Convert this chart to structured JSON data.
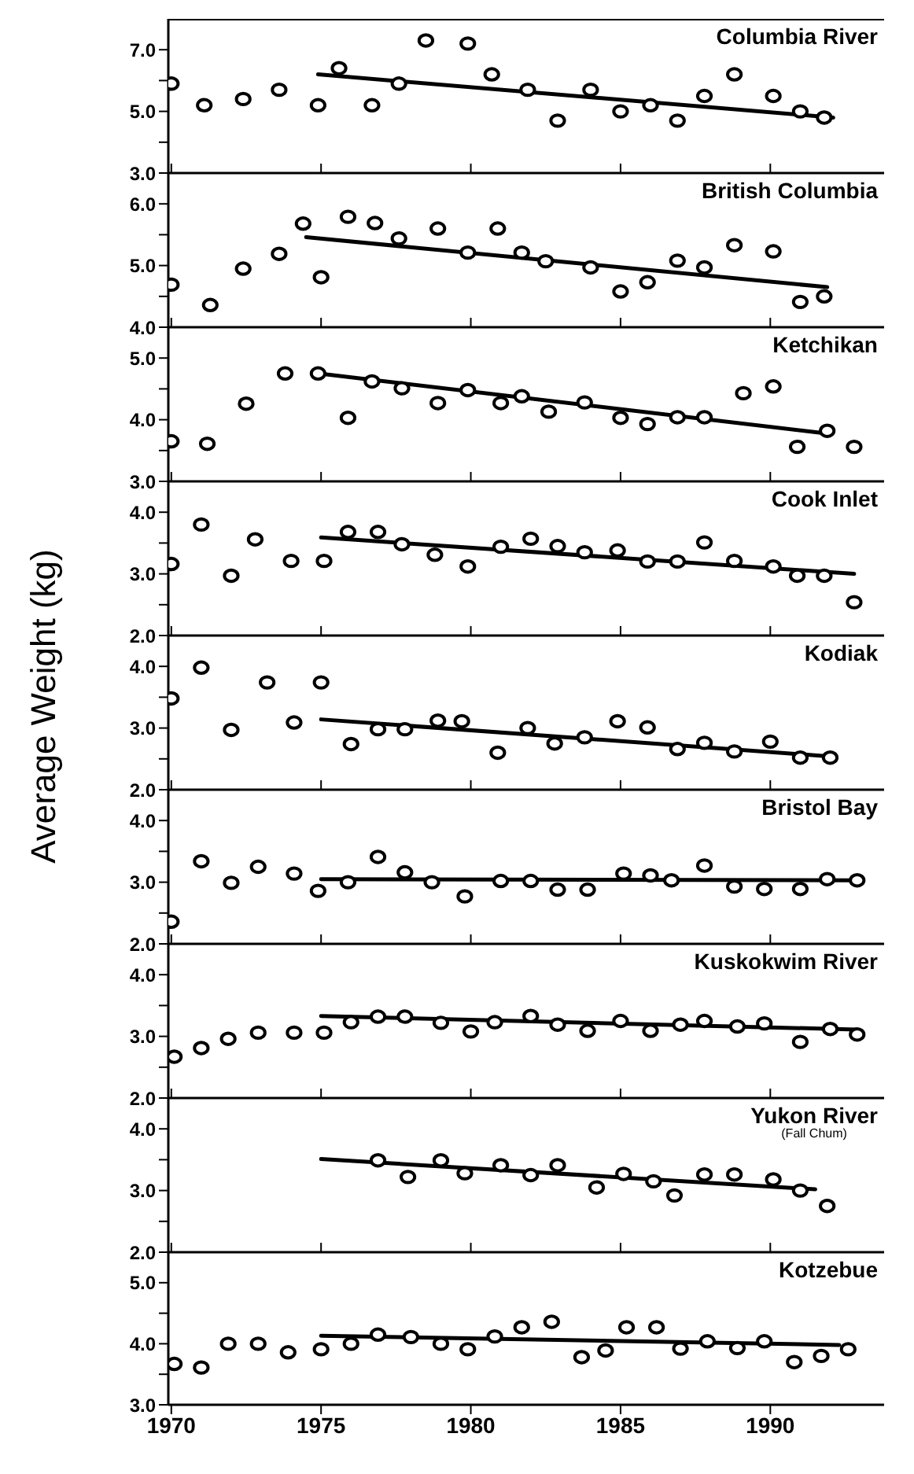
{
  "chart_data": [
    {
      "type": "scatter",
      "title": "Columbia River",
      "marker": "circle",
      "tick_labels": "y",
      "xlim": [
        1969.9,
        1993.8
      ],
      "xticks": [
        1970,
        1975,
        1980,
        1985,
        1990
      ],
      "ylim": [
        3,
        8
      ],
      "yticks": [
        {
          "value": 3,
          "label": "3.0"
        },
        {
          "value": 4,
          "label": null
        },
        {
          "value": 5,
          "label": "5.0"
        },
        {
          "value": 6,
          "label": null
        },
        {
          "value": 7,
          "label": "7.0"
        }
      ],
      "series": [
        {
          "type": "scatter",
          "color": "#000000",
          "x": [
            1970.0,
            1971.1,
            1972.4,
            1973.6,
            1974.9,
            1975.6,
            1976.7,
            1977.6,
            1978.5,
            1979.9,
            1980.7,
            1981.9,
            1982.9,
            1984.0,
            1985.0,
            1986.0,
            1986.9,
            1987.8,
            1988.8,
            1990.1,
            1991.0,
            1991.8
          ],
          "values": [
            5.9,
            5.2,
            5.4,
            5.7,
            5.2,
            6.4,
            5.2,
            5.9,
            7.3,
            7.2,
            6.2,
            5.7,
            4.7,
            5.7,
            5.0,
            5.2,
            4.7,
            5.5,
            6.2,
            5.5,
            5.0,
            4.8
          ]
        },
        {
          "type": "line",
          "color": "#000000",
          "marker": "none",
          "line_style": "solid",
          "x": [
            1974.9,
            1992.1
          ],
          "values": [
            6.2,
            4.8
          ]
        }
      ]
    },
    {
      "type": "scatter",
      "title": "British Columbia",
      "marker": "circle",
      "tick_labels": "y",
      "xlim": [
        1969.9,
        1993.8
      ],
      "xticks": [
        1970,
        1975,
        1980,
        1985,
        1990
      ],
      "ylim": [
        4,
        6.5
      ],
      "yticks": [
        {
          "value": 4,
          "label": "4.0"
        },
        {
          "value": 4.5,
          "label": null
        },
        {
          "value": 5,
          "label": "5.0"
        },
        {
          "value": 5.5,
          "label": null
        },
        {
          "value": 6,
          "label": "6.0"
        }
      ],
      "series": [
        {
          "type": "scatter",
          "color": "#000000",
          "x": [
            1970.0,
            1971.3,
            1972.4,
            1973.6,
            1974.4,
            1975.0,
            1975.9,
            1976.8,
            1977.6,
            1978.9,
            1979.9,
            1980.9,
            1981.7,
            1982.5,
            1984.0,
            1985.0,
            1985.9,
            1986.9,
            1987.8,
            1988.8,
            1990.1,
            1991.0,
            1991.8
          ],
          "values": [
            4.69,
            4.36,
            4.95,
            5.19,
            5.68,
            4.81,
            5.79,
            5.69,
            5.44,
            5.6,
            5.21,
            5.6,
            5.21,
            5.07,
            4.97,
            4.58,
            4.73,
            5.08,
            4.97,
            5.33,
            5.23,
            4.41,
            4.5
          ]
        },
        {
          "type": "line",
          "color": "#000000",
          "marker": "none",
          "line_style": "solid",
          "x": [
            1974.5,
            1991.9
          ],
          "values": [
            5.46,
            4.65
          ]
        }
      ]
    },
    {
      "type": "scatter",
      "title": "Ketchikan",
      "marker": "circle",
      "tick_labels": "y",
      "xlim": [
        1969.9,
        1993.8
      ],
      "xticks": [
        1970,
        1975,
        1980,
        1985,
        1990
      ],
      "ylim": [
        3,
        5.5
      ],
      "yticks": [
        {
          "value": 3,
          "label": "3.0"
        },
        {
          "value": 3.5,
          "label": null
        },
        {
          "value": 4,
          "label": "4.0"
        },
        {
          "value": 4.5,
          "label": null
        },
        {
          "value": 5,
          "label": "5.0"
        }
      ],
      "series": [
        {
          "type": "scatter",
          "color": "#000000",
          "x": [
            1970.0,
            1971.2,
            1972.5,
            1973.8,
            1974.9,
            1975.9,
            1976.7,
            1977.7,
            1978.9,
            1979.9,
            1981.0,
            1981.7,
            1982.6,
            1983.8,
            1985.0,
            1985.9,
            1986.9,
            1987.8,
            1989.1,
            1990.1,
            1990.9,
            1991.9,
            1992.8
          ],
          "values": [
            3.65,
            3.61,
            4.26,
            4.75,
            4.75,
            4.03,
            4.62,
            4.51,
            4.27,
            4.48,
            4.27,
            4.38,
            4.13,
            4.28,
            4.03,
            3.93,
            4.04,
            4.04,
            4.43,
            4.54,
            3.56,
            3.82,
            3.56
          ]
        },
        {
          "type": "line",
          "color": "#000000",
          "marker": "none",
          "line_style": "solid",
          "x": [
            1974.9,
            1991.8
          ],
          "values": [
            4.75,
            3.78
          ]
        }
      ]
    },
    {
      "type": "scatter",
      "title": "Cook Inlet",
      "marker": "circle",
      "tick_labels": "y",
      "xlim": [
        1969.9,
        1993.8
      ],
      "xticks": [
        1970,
        1975,
        1980,
        1985,
        1990
      ],
      "ylim": [
        2,
        4.5
      ],
      "yticks": [
        {
          "value": 2,
          "label": "2.0"
        },
        {
          "value": 2.5,
          "label": null
        },
        {
          "value": 3,
          "label": "3.0"
        },
        {
          "value": 3.5,
          "label": null
        },
        {
          "value": 4,
          "label": "4.0"
        }
      ],
      "series": [
        {
          "type": "scatter",
          "color": "#000000",
          "x": [
            1970.0,
            1971.0,
            1972.0,
            1972.8,
            1974.0,
            1975.1,
            1975.9,
            1976.9,
            1977.7,
            1978.8,
            1979.9,
            1981.0,
            1982.0,
            1982.9,
            1983.8,
            1984.9,
            1985.9,
            1986.9,
            1987.8,
            1988.8,
            1990.1,
            1990.9,
            1991.8,
            1992.8
          ],
          "values": [
            3.16,
            3.8,
            2.97,
            3.56,
            3.21,
            3.21,
            3.68,
            3.68,
            3.48,
            3.31,
            3.12,
            3.44,
            3.57,
            3.45,
            3.35,
            3.38,
            3.2,
            3.2,
            3.51,
            3.21,
            3.12,
            2.97,
            2.97,
            2.54
          ]
        },
        {
          "type": "line",
          "color": "#000000",
          "marker": "none",
          "line_style": "solid",
          "x": [
            1975,
            1992.8
          ],
          "values": [
            3.59,
            3.0
          ]
        }
      ]
    },
    {
      "type": "scatter",
      "title": "Kodiak",
      "ylabel": "Average Weight (kg)",
      "marker": "circle",
      "tick_labels": "y",
      "xlim": [
        1969.9,
        1993.8
      ],
      "xticks": [
        1970,
        1975,
        1980,
        1985,
        1990
      ],
      "ylim": [
        2,
        4.5
      ],
      "yticks": [
        {
          "value": 2,
          "label": "2.0"
        },
        {
          "value": 2.5,
          "label": null
        },
        {
          "value": 3,
          "label": "3.0"
        },
        {
          "value": 3.5,
          "label": null
        },
        {
          "value": 4,
          "label": "4.0"
        }
      ],
      "series": [
        {
          "type": "scatter",
          "color": "#000000",
          "x": [
            1970.0,
            1971.0,
            1972.0,
            1973.2,
            1974.1,
            1975.0,
            1976.0,
            1976.9,
            1977.8,
            1978.9,
            1979.7,
            1980.9,
            1981.9,
            1982.8,
            1983.8,
            1984.9,
            1985.9,
            1986.9,
            1987.8,
            1988.8,
            1990.0,
            1991.0,
            1992.0
          ],
          "values": [
            3.48,
            3.98,
            2.97,
            3.74,
            3.09,
            3.74,
            2.74,
            2.98,
            2.98,
            3.12,
            3.11,
            2.6,
            3.0,
            2.75,
            2.85,
            3.11,
            3.01,
            2.66,
            2.76,
            2.62,
            2.78,
            2.52,
            2.52
          ]
        },
        {
          "type": "line",
          "color": "#000000",
          "marker": "none",
          "line_style": "solid",
          "x": [
            1975,
            1992
          ],
          "values": [
            3.14,
            2.54
          ]
        }
      ]
    },
    {
      "type": "scatter",
      "title": "Bristol Bay",
      "marker": "circle",
      "tick_labels": "y",
      "xlim": [
        1969.9,
        1993.8
      ],
      "xticks": [
        1970,
        1975,
        1980,
        1985,
        1990
      ],
      "ylim": [
        2,
        4.5
      ],
      "yticks": [
        {
          "value": 2,
          "label": "2.0"
        },
        {
          "value": 2.5,
          "label": null
        },
        {
          "value": 3,
          "label": "3.0"
        },
        {
          "value": 3.5,
          "label": null
        },
        {
          "value": 4,
          "label": "4.0"
        }
      ],
      "series": [
        {
          "type": "scatter",
          "color": "#000000",
          "x": [
            1970.0,
            1971.0,
            1972.0,
            1972.9,
            1974.1,
            1974.9,
            1975.9,
            1976.9,
            1977.8,
            1978.7,
            1979.8,
            1981.0,
            1982.0,
            1982.9,
            1983.9,
            1985.1,
            1986.0,
            1986.7,
            1987.8,
            1988.8,
            1989.8,
            1991.0,
            1991.9,
            1992.9
          ],
          "values": [
            2.36,
            3.34,
            2.99,
            3.25,
            3.14,
            2.86,
            3.0,
            3.41,
            3.16,
            3.0,
            2.77,
            3.02,
            3.02,
            2.88,
            2.88,
            3.14,
            3.11,
            3.03,
            3.27,
            2.93,
            2.89,
            2.89,
            3.05,
            3.03
          ]
        },
        {
          "type": "line",
          "color": "#000000",
          "marker": "none",
          "line_style": "solid",
          "x": [
            1975,
            1992.9
          ],
          "values": [
            3.05,
            3.03
          ]
        }
      ]
    },
    {
      "type": "scatter",
      "title": "Kuskokwim River",
      "marker": "circle",
      "tick_labels": "y",
      "xlim": [
        1969.9,
        1993.8
      ],
      "xticks": [
        1970,
        1975,
        1980,
        1985,
        1990
      ],
      "ylim": [
        2,
        4.5
      ],
      "yticks": [
        {
          "value": 2,
          "label": "2.0"
        },
        {
          "value": 2.5,
          "label": null
        },
        {
          "value": 3,
          "label": "3.0"
        },
        {
          "value": 3.5,
          "label": null
        },
        {
          "value": 4,
          "label": "4.0"
        }
      ],
      "series": [
        {
          "type": "scatter",
          "color": "#000000",
          "x": [
            1970.1,
            1971.0,
            1971.9,
            1972.9,
            1974.1,
            1975.1,
            1976.0,
            1976.9,
            1977.8,
            1979.0,
            1980.0,
            1980.8,
            1982.0,
            1982.9,
            1983.9,
            1985.0,
            1986.0,
            1987.0,
            1987.8,
            1988.9,
            1989.8,
            1991.0,
            1992.0,
            1992.9
          ],
          "values": [
            2.67,
            2.81,
            2.96,
            3.06,
            3.06,
            3.06,
            3.23,
            3.32,
            3.32,
            3.22,
            3.08,
            3.23,
            3.33,
            3.19,
            3.09,
            3.25,
            3.09,
            3.19,
            3.25,
            3.16,
            3.21,
            2.91,
            3.12,
            3.03
          ]
        },
        {
          "type": "line",
          "color": "#000000",
          "marker": "none",
          "line_style": "solid",
          "x": [
            1975,
            1992.9
          ],
          "values": [
            3.33,
            3.11
          ]
        }
      ]
    },
    {
      "type": "scatter",
      "title": "Yukon River",
      "subtitle": "(Fall Chum)",
      "marker": "circle",
      "tick_labels": "y",
      "xlim": [
        1969.9,
        1993.8
      ],
      "xticks": [
        1970,
        1975,
        1980,
        1985,
        1990
      ],
      "ylim": [
        2,
        4.5
      ],
      "yticks": [
        {
          "value": 2,
          "label": "2.0"
        },
        {
          "value": 2.5,
          "label": null
        },
        {
          "value": 3,
          "label": "3.0"
        },
        {
          "value": 3.5,
          "label": null
        },
        {
          "value": 4,
          "label": "4.0"
        }
      ],
      "series": [
        {
          "type": "scatter",
          "color": "#000000",
          "x": [
            1976.9,
            1977.9,
            1979.0,
            1979.8,
            1981.0,
            1982.0,
            1982.9,
            1984.2,
            1985.1,
            1986.1,
            1986.8,
            1987.8,
            1988.8,
            1990.1,
            1991.0,
            1991.9
          ],
          "values": [
            3.49,
            3.22,
            3.49,
            3.28,
            3.41,
            3.25,
            3.41,
            3.05,
            3.27,
            3.15,
            2.92,
            3.26,
            3.26,
            3.18,
            3.0,
            2.75
          ]
        },
        {
          "type": "line",
          "color": "#000000",
          "marker": "none",
          "line_style": "solid",
          "x": [
            1975,
            1991.5
          ],
          "values": [
            3.51,
            3.02
          ]
        }
      ]
    },
    {
      "type": "scatter",
      "title": "Kotzebue",
      "marker": "circle",
      "xlim": [
        1969.9,
        1993.8
      ],
      "xticks": [
        1970,
        1975,
        1980,
        1985,
        1990
      ],
      "ylim": [
        3,
        5.5
      ],
      "yticks": [
        {
          "value": 3,
          "label": "3.0"
        },
        {
          "value": 3.5,
          "label": null
        },
        {
          "value": 4,
          "label": "4.0"
        },
        {
          "value": 4.5,
          "label": null
        },
        {
          "value": 5,
          "label": "5.0"
        }
      ],
      "series": [
        {
          "type": "scatter",
          "color": "#000000",
          "x": [
            1970.1,
            1971.0,
            1971.9,
            1972.9,
            1973.9,
            1975.0,
            1976.0,
            1976.9,
            1978.0,
            1979.0,
            1979.9,
            1980.8,
            1981.7,
            1982.7,
            1983.7,
            1984.5,
            1985.2,
            1986.2,
            1987.0,
            1987.9,
            1988.9,
            1989.8,
            1990.8,
            1991.7,
            1992.6
          ],
          "values": [
            3.67,
            3.61,
            4.0,
            4.0,
            3.86,
            3.91,
            4.0,
            4.15,
            4.11,
            4.0,
            3.91,
            4.12,
            4.27,
            4.36,
            3.78,
            3.89,
            4.27,
            4.27,
            3.92,
            4.04,
            3.93,
            4.04,
            3.7,
            3.8,
            3.91
          ]
        },
        {
          "type": "line",
          "color": "#000000",
          "marker": "none",
          "line_style": "solid",
          "x": [
            1975,
            1992.3
          ],
          "values": [
            4.13,
            3.98
          ]
        }
      ]
    }
  ]
}
